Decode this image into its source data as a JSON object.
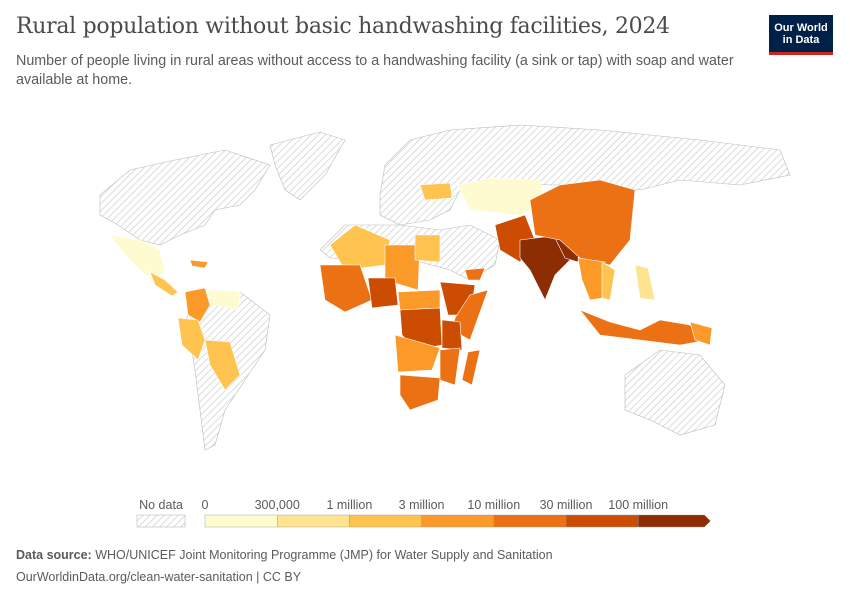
{
  "header": {
    "title": "Rural population without basic handwashing facilities, 2024",
    "subtitle": "Number of people living in rural areas without access to a handwashing facility (a sink or tap) with soap and water available at home.",
    "logo": "Our World in Data"
  },
  "legend": {
    "no_data_label": "No data",
    "no_data_color": "#e0e0e0",
    "bins": [
      "0",
      "300,000",
      "1 million",
      "3 million",
      "10 million",
      "30 million",
      "100 million"
    ],
    "colors": [
      "#fffbd0",
      "#fee391",
      "#fec44f",
      "#fb9a29",
      "#ec7014",
      "#cc4c02",
      "#8c2d04"
    ]
  },
  "footer": {
    "source_label": "Data source:",
    "source": "WHO/UNICEF Joint Monitoring Programme (JMP) for Water Supply and Sanitation",
    "url": "OurWorldinData.org/clean-water-sanitation | CC BY"
  }
}
